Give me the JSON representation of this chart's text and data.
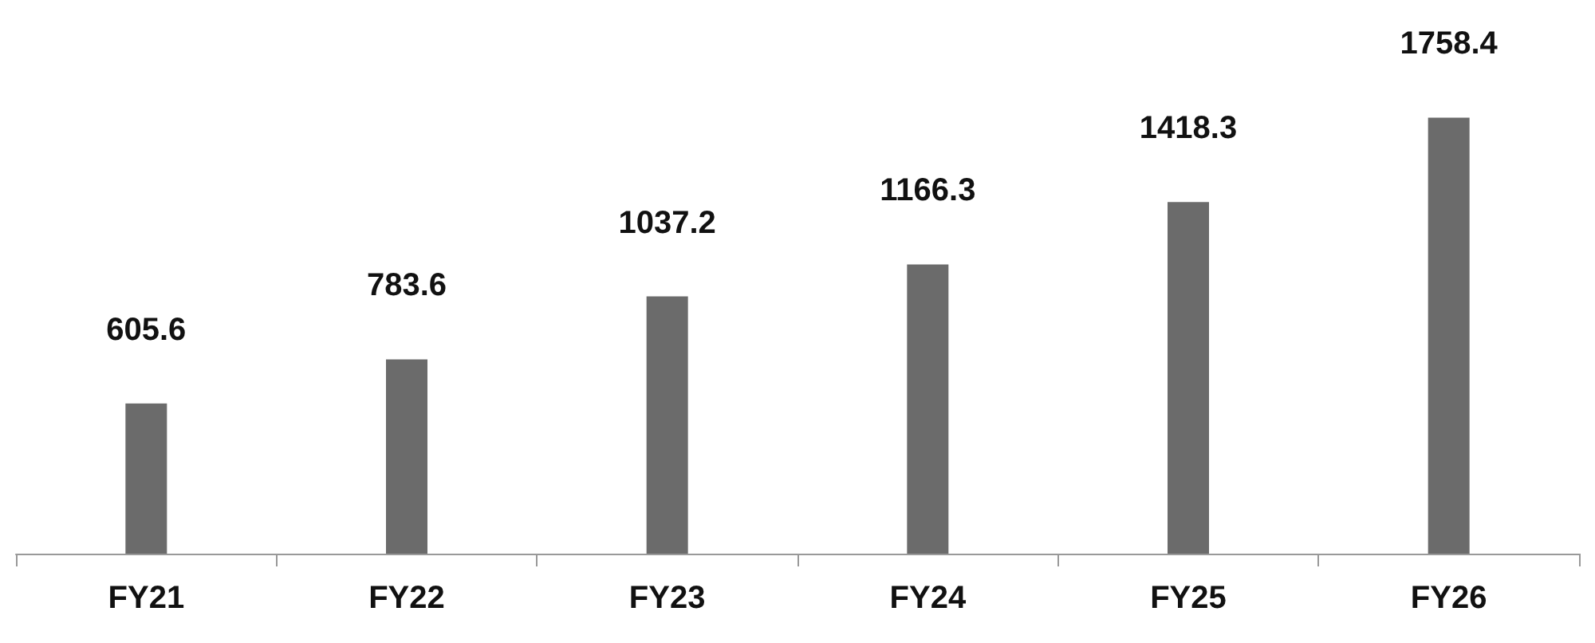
{
  "chart_data": {
    "type": "bar",
    "categories": [
      "FY21",
      "FY22",
      "FY23",
      "FY24",
      "FY25",
      "FY26"
    ],
    "values": [
      605.6,
      783.6,
      1037.2,
      1166.3,
      1418.3,
      1758.4
    ],
    "color": "#6b6b6b",
    "data_labels": true
  }
}
